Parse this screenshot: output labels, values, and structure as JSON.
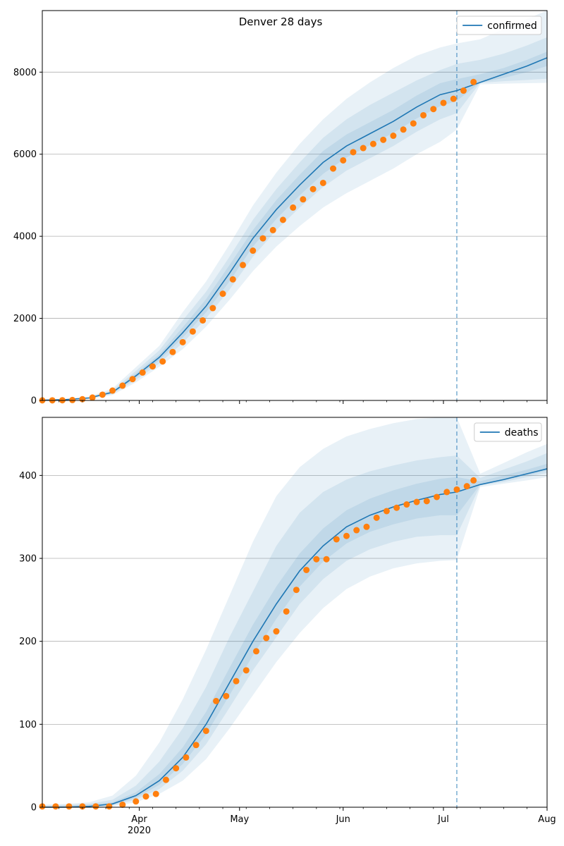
{
  "figure": {
    "title": "Denver 28 days",
    "forecast_start": "2020-07-05"
  },
  "colors": {
    "model_line": "#1f77b4",
    "observed_points": "#ff7f0e",
    "band": "#1f77b4",
    "grid": "#b0b0b0",
    "axis": "#000000"
  },
  "chart_data": [
    {
      "type": "line",
      "title": "Denver 28 days",
      "legend": [
        "confirmed"
      ],
      "legend_position": "top-right",
      "grid": "horizontal",
      "xlim": [
        "2020-03-03",
        "2020-08-01"
      ],
      "ylim": [
        0,
        9500
      ],
      "yticks": [
        0,
        2000,
        4000,
        6000,
        8000
      ],
      "xtick_labels": [
        "",
        "",
        "",
        "",
        ""
      ],
      "forecast_start": "2020-07-05",
      "model": {
        "name": "confirmed",
        "x": [
          "2020-03-03",
          "2020-03-10",
          "2020-03-17",
          "2020-03-24",
          "2020-03-31",
          "2020-04-07",
          "2020-04-14",
          "2020-04-21",
          "2020-04-28",
          "2020-05-05",
          "2020-05-12",
          "2020-05-19",
          "2020-05-26",
          "2020-06-02",
          "2020-06-09",
          "2020-06-16",
          "2020-06-23",
          "2020-06-30",
          "2020-07-05",
          "2020-07-12",
          "2020-07-19",
          "2020-07-26",
          "2020-08-01"
        ],
        "y": [
          5,
          20,
          60,
          200,
          600,
          1050,
          1650,
          2300,
          3100,
          3950,
          4650,
          5250,
          5800,
          6200,
          6500,
          6800,
          7150,
          7450,
          7550,
          7750,
          7950,
          8150,
          8350
        ],
        "bands": [
          {
            "lower": [
              0,
              10,
              35,
              130,
              440,
              820,
              1250,
              1800,
              2450,
              3150,
              3750,
              4250,
              4700,
              5050,
              5350,
              5650,
              6000,
              6300,
              6600,
              7700,
              7720,
              7730,
              7740
            ],
            "upper": [
              10,
              35,
              95,
              290,
              810,
              1330,
              2150,
              2900,
              3800,
              4750,
              5550,
              6250,
              6850,
              7350,
              7750,
              8100,
              8400,
              8600,
              8700,
              8800,
              9050,
              9300,
              9500
            ]
          },
          {
            "lower": [
              2,
              14,
              45,
              160,
              500,
              900,
              1400,
              2000,
              2700,
              3500,
              4150,
              4700,
              5200,
              5600,
              5900,
              6200,
              6550,
              6850,
              7000,
              7740,
              7780,
              7810,
              7840
            ],
            "upper": [
              8,
              28,
              80,
              250,
              720,
              1220,
              1950,
              2650,
              3500,
              4400,
              5150,
              5800,
              6400,
              6850,
              7200,
              7500,
              7800,
              8050,
              8200,
              8300,
              8450,
              8650,
              8850
            ]
          },
          {
            "lower": [
              3,
              17,
              52,
              180,
              550,
              980,
              1530,
              2150,
              2900,
              3750,
              4420,
              5000,
              5520,
              5920,
              6220,
              6520,
              6870,
              7170,
              7300,
              7745,
              7860,
              8000,
              8150
            ],
            "upper": [
              6,
              23,
              68,
              220,
              660,
              1120,
              1780,
              2470,
              3300,
              4150,
              4880,
              5500,
              6080,
              6480,
              6780,
              7080,
              7430,
              7730,
              7830,
              7950,
              8100,
              8300,
              8500
            ]
          }
        ]
      },
      "observed": {
        "x": [
          "2020-03-03",
          "2020-03-06",
          "2020-03-09",
          "2020-03-12",
          "2020-03-15",
          "2020-03-18",
          "2020-03-21",
          "2020-03-24",
          "2020-03-27",
          "2020-03-30",
          "2020-04-02",
          "2020-04-05",
          "2020-04-08",
          "2020-04-11",
          "2020-04-14",
          "2020-04-17",
          "2020-04-20",
          "2020-04-23",
          "2020-04-26",
          "2020-04-29",
          "2020-05-02",
          "2020-05-05",
          "2020-05-08",
          "2020-05-11",
          "2020-05-14",
          "2020-05-17",
          "2020-05-20",
          "2020-05-23",
          "2020-05-26",
          "2020-05-29",
          "2020-06-01",
          "2020-06-04",
          "2020-06-07",
          "2020-06-10",
          "2020-06-13",
          "2020-06-16",
          "2020-06-19",
          "2020-06-22",
          "2020-06-25",
          "2020-06-28",
          "2020-07-01",
          "2020-07-04",
          "2020-07-07",
          "2020-07-10"
        ],
        "y": [
          2,
          3,
          5,
          10,
          30,
          70,
          140,
          240,
          360,
          520,
          680,
          830,
          950,
          1180,
          1420,
          1680,
          1950,
          2250,
          2600,
          2950,
          3300,
          3650,
          3950,
          4150,
          4400,
          4700,
          4900,
          5150,
          5300,
          5650,
          5850,
          6050,
          6150,
          6250,
          6350,
          6450,
          6600,
          6750,
          6950,
          7100,
          7250,
          7350,
          7550,
          7760
        ]
      }
    },
    {
      "type": "line",
      "title": "",
      "legend": [
        "deaths"
      ],
      "legend_position": "top-right",
      "grid": "horizontal",
      "xlim": [
        "2020-03-03",
        "2020-08-01"
      ],
      "ylim": [
        0,
        470
      ],
      "yticks": [
        0,
        100,
        200,
        300,
        400
      ],
      "xtick_labels": [
        "Apr\n2020",
        "May",
        "Jun",
        "Jul",
        "Aug"
      ],
      "forecast_start": "2020-07-05",
      "model": {
        "name": "deaths",
        "x": [
          "2020-03-03",
          "2020-03-10",
          "2020-03-17",
          "2020-03-24",
          "2020-03-31",
          "2020-04-07",
          "2020-04-14",
          "2020-04-21",
          "2020-04-28",
          "2020-05-05",
          "2020-05-12",
          "2020-05-19",
          "2020-05-26",
          "2020-06-02",
          "2020-06-09",
          "2020-06-16",
          "2020-06-23",
          "2020-06-30",
          "2020-07-05",
          "2020-07-12",
          "2020-07-19",
          "2020-07-26",
          "2020-08-01"
        ],
        "y": [
          0,
          0,
          1,
          4,
          14,
          32,
          60,
          100,
          150,
          200,
          245,
          285,
          315,
          338,
          352,
          362,
          370,
          377,
          380,
          389,
          395,
          402,
          408
        ],
        "bands": [
          {
            "lower": [
              0,
              0,
              0,
              1,
              6,
              16,
              32,
              58,
              95,
              135,
              175,
              210,
              240,
              263,
              278,
              288,
              294,
              297,
              298,
              386,
              390,
              394,
              398
            ],
            "upper": [
              3,
              4,
              6,
              14,
              38,
              78,
              130,
              190,
              255,
              320,
              375,
              410,
              432,
              447,
              456,
              463,
              468,
              470,
              470,
              402,
              415,
              428,
              438
            ]
          },
          {
            "lower": [
              0,
              0,
              0,
              2,
              9,
              22,
              44,
              76,
              120,
              165,
              205,
              245,
              275,
              297,
              311,
              320,
              326,
              328,
              328,
              388,
              392,
              398,
              403
            ],
            "upper": [
              2,
              3,
              4,
              9,
              26,
              55,
              95,
              145,
              205,
              260,
              315,
              355,
              380,
              395,
              405,
              412,
              418,
              422,
              424,
              397,
              407,
              417,
              427
            ]
          },
          {
            "lower": [
              0,
              0,
              1,
              3,
              11,
              27,
              52,
              88,
              135,
              183,
              227,
              266,
              296,
              318,
              332,
              341,
              348,
              352,
              352,
              389,
              394,
              400,
              406
            ],
            "upper": [
              1,
              2,
              3,
              6,
              18,
              40,
              72,
              115,
              168,
              220,
              266,
              306,
              336,
              358,
              372,
              382,
              390,
              396,
              398,
              393,
              400,
              407,
              414
            ]
          }
        ]
      },
      "observed": {
        "x": [
          "2020-03-03",
          "2020-03-07",
          "2020-03-11",
          "2020-03-15",
          "2020-03-19",
          "2020-03-23",
          "2020-03-27",
          "2020-03-31",
          "2020-04-03",
          "2020-04-06",
          "2020-04-09",
          "2020-04-12",
          "2020-04-15",
          "2020-04-18",
          "2020-04-21",
          "2020-04-24",
          "2020-04-27",
          "2020-04-30",
          "2020-05-03",
          "2020-05-06",
          "2020-05-09",
          "2020-05-12",
          "2020-05-15",
          "2020-05-18",
          "2020-05-21",
          "2020-05-24",
          "2020-05-27",
          "2020-05-30",
          "2020-06-02",
          "2020-06-05",
          "2020-06-08",
          "2020-06-11",
          "2020-06-14",
          "2020-06-17",
          "2020-06-20",
          "2020-06-23",
          "2020-06-26",
          "2020-06-29",
          "2020-07-02",
          "2020-07-05",
          "2020-07-08",
          "2020-07-10"
        ],
        "y": [
          1,
          1,
          1,
          1,
          1,
          1,
          3,
          7,
          13,
          16,
          33,
          47,
          60,
          75,
          92,
          128,
          134,
          152,
          165,
          188,
          204,
          212,
          236,
          262,
          286,
          299,
          299,
          323,
          327,
          334,
          338,
          349,
          357,
          361,
          365,
          368,
          369,
          374,
          380,
          383,
          387,
          394
        ]
      }
    }
  ]
}
